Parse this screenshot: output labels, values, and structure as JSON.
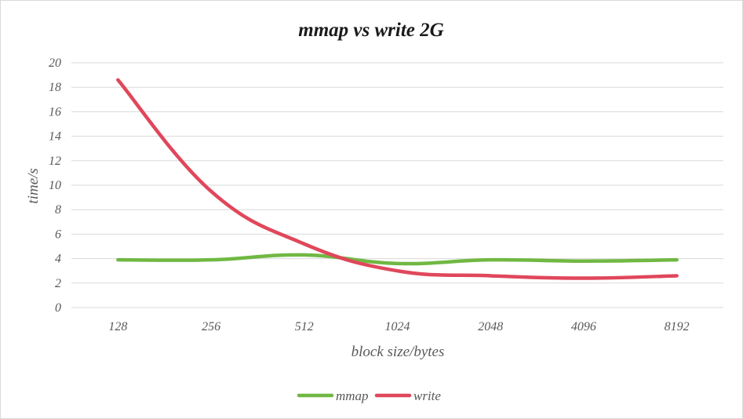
{
  "chart_data": {
    "type": "line",
    "title": "mmap vs write 2G",
    "xlabel": "block size/bytes",
    "ylabel": "time/s",
    "categories": [
      "128",
      "256",
      "512",
      "1024",
      "2048",
      "4096",
      "8192"
    ],
    "y_ticks": [
      "0",
      "2",
      "4",
      "6",
      "8",
      "10",
      "12",
      "14",
      "16",
      "18",
      "20"
    ],
    "ylim": [
      0,
      20
    ],
    "grid": true,
    "smooth": true,
    "legend_position": "bottom",
    "series": [
      {
        "name": "mmap",
        "color": "#70b843",
        "values": [
          3.9,
          3.9,
          4.3,
          3.6,
          3.9,
          3.8,
          3.9
        ]
      },
      {
        "name": "write",
        "color": "#e0475b",
        "values": [
          18.6,
          9.5,
          5.2,
          3.0,
          2.6,
          2.4,
          2.6
        ]
      }
    ]
  }
}
